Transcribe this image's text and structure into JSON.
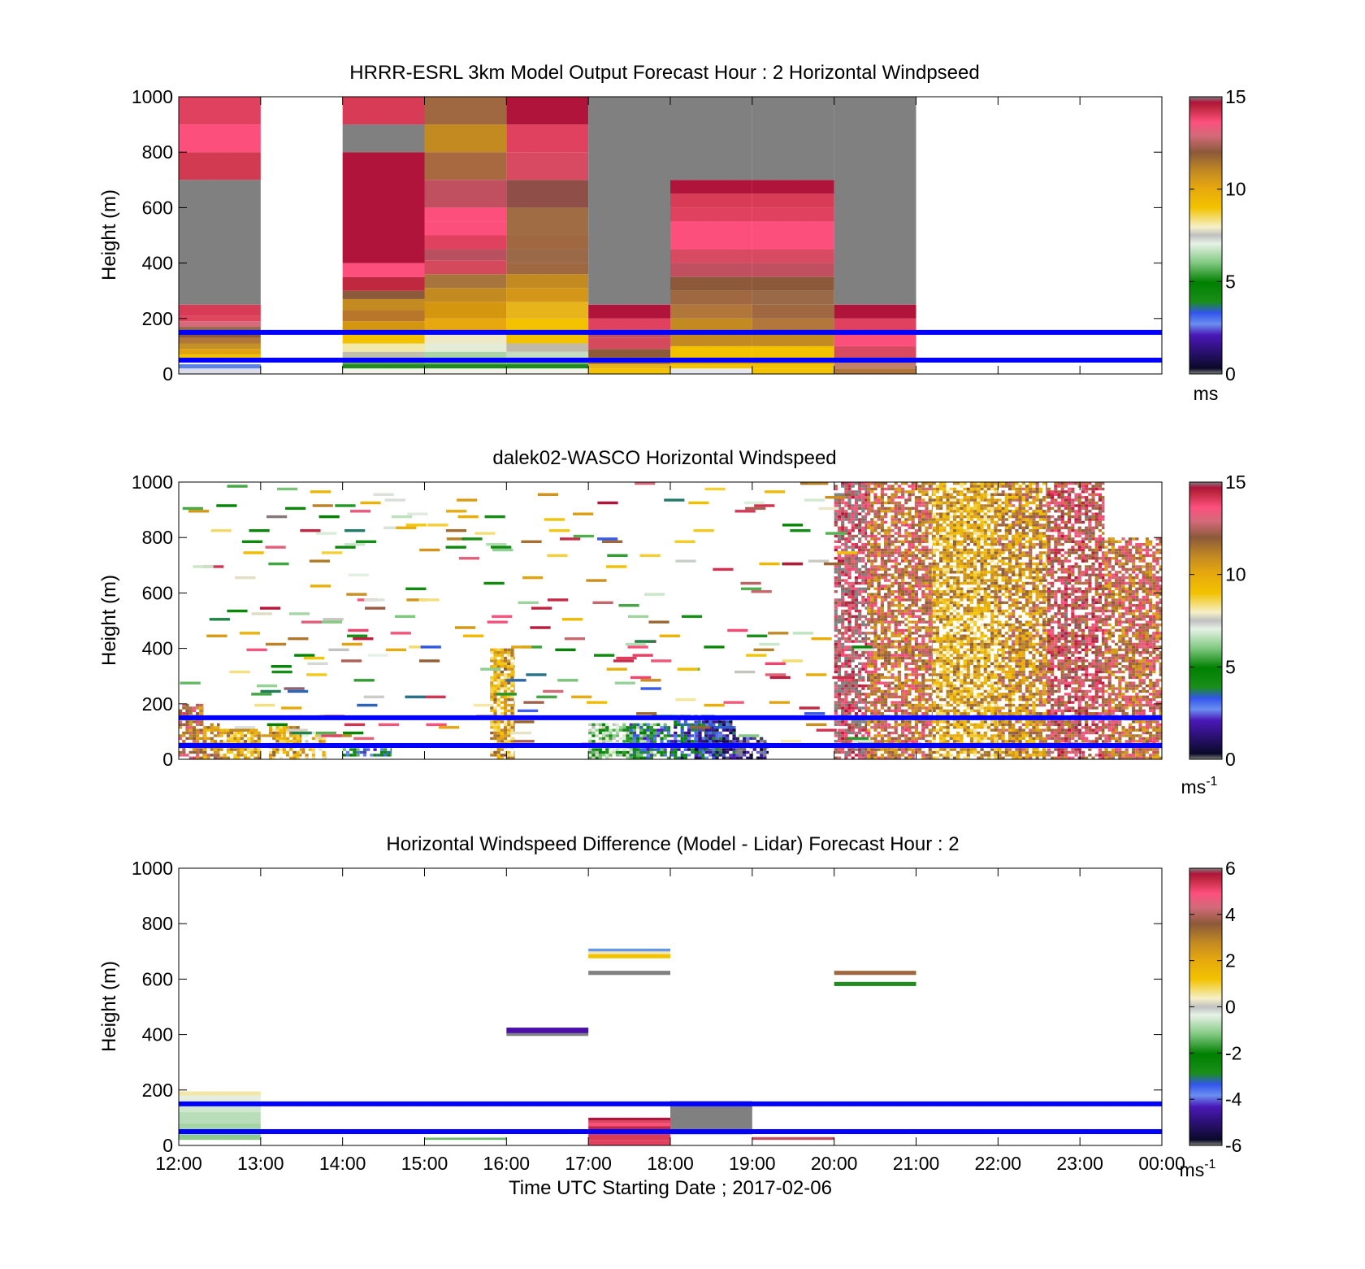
{
  "figure": {
    "x_title": "Time UTC  Starting Date ; 2017-02-06",
    "x_tick_labels": [
      "12:00",
      "13:00",
      "14:00",
      "15:00",
      "16:00",
      "17:00",
      "18:00",
      "19:00",
      "20:00",
      "21:00",
      "22:00",
      "23:00",
      "00:00"
    ]
  },
  "chart_data": [
    {
      "type": "heatmap",
      "title": "HRRR-ESRL 3km Model Output   Forecast Hour : 2 Horizontal Windpseed",
      "ylabel": "Height (m)",
      "xlabel": "",
      "xlim_hours": [
        12,
        24
      ],
      "ylim": [
        0,
        1000
      ],
      "y_ticks": [
        0,
        200,
        400,
        600,
        800,
        1000
      ],
      "colorbar": {
        "min": 0,
        "max": 15,
        "ticks": [
          0,
          5,
          10,
          15
        ],
        "unit_label": "ms",
        "unit_superscript": ""
      },
      "reference_lines_m": [
        50,
        150
      ],
      "reference_line_color": "#0000ff",
      "cells": [
        {
          "t0": 12,
          "t1": 13,
          "segments": [
            [
              0,
              20,
              "#dadce8"
            ],
            [
              20,
              35,
              "#5a7fe6"
            ],
            [
              35,
              50,
              "#f4f4ea"
            ],
            [
              50,
              70,
              "#f2c200"
            ],
            [
              70,
              90,
              "#e0a20e"
            ],
            [
              90,
              110,
              "#c49028"
            ],
            [
              110,
              130,
              "#b0763a"
            ],
            [
              130,
              150,
              "#8c5a3a"
            ],
            [
              150,
              170,
              "#9a6a48"
            ],
            [
              170,
              190,
              "#d46a7a"
            ],
            [
              190,
              210,
              "#e0455e"
            ],
            [
              210,
              250,
              "#d83b55"
            ],
            [
              250,
              700,
              "#808080"
            ],
            [
              700,
              800,
              "#d23a52"
            ],
            [
              800,
              900,
              "#fd4f7c"
            ],
            [
              900,
              1000,
              "#e0415e"
            ]
          ]
        },
        {
          "t0": 14,
          "t1": 15,
          "segments": [
            [
              0,
              20,
              "#f2f2e8"
            ],
            [
              20,
              35,
              "#228b22"
            ],
            [
              35,
              50,
              "#5ea85e"
            ],
            [
              50,
              80,
              "#bfbfb0"
            ],
            [
              80,
              110,
              "#f2e8a8"
            ],
            [
              110,
              150,
              "#f2c200"
            ],
            [
              150,
              190,
              "#d4960f"
            ],
            [
              190,
              230,
              "#b8762a"
            ],
            [
              230,
              270,
              "#c48a22"
            ],
            [
              270,
              300,
              "#8c5a3a"
            ],
            [
              300,
              350,
              "#c02840"
            ],
            [
              350,
              400,
              "#fd4f7c"
            ],
            [
              400,
              800,
              "#b0143a"
            ],
            [
              800,
              900,
              "#808080"
            ],
            [
              900,
              1000,
              "#d83b55"
            ]
          ]
        },
        {
          "t0": 15,
          "t1": 16,
          "segments": [
            [
              0,
              20,
              "#f2f2e8"
            ],
            [
              20,
              35,
              "#1f8a1f"
            ],
            [
              35,
              55,
              "#6db86d"
            ],
            [
              55,
              80,
              "#a8d4a8"
            ],
            [
              80,
              110,
              "#e4ebd6"
            ],
            [
              110,
              150,
              "#efe8c6"
            ],
            [
              150,
              200,
              "#e6a80e"
            ],
            [
              200,
              260,
              "#d4960f"
            ],
            [
              260,
              310,
              "#c48a22"
            ],
            [
              310,
              360,
              "#a8743e"
            ],
            [
              360,
              410,
              "#d4495c"
            ],
            [
              410,
              450,
              "#b85060"
            ],
            [
              450,
              500,
              "#e0415e"
            ],
            [
              500,
              550,
              "#fd4f7c"
            ],
            [
              550,
              600,
              "#fd4f7c"
            ],
            [
              600,
              700,
              "#c05060"
            ],
            [
              700,
              800,
              "#a86840"
            ],
            [
              800,
              900,
              "#c48a22"
            ],
            [
              900,
              1000,
              "#a06840"
            ]
          ]
        },
        {
          "t0": 16,
          "t1": 17,
          "segments": [
            [
              0,
              20,
              "#f2f2e8"
            ],
            [
              20,
              35,
              "#1f8a1f"
            ],
            [
              35,
              55,
              "#6db86d"
            ],
            [
              55,
              80,
              "#c4dcc4"
            ],
            [
              80,
              110,
              "#c0b8a8"
            ],
            [
              110,
              150,
              "#f2c200"
            ],
            [
              150,
              200,
              "#f2c200"
            ],
            [
              200,
              260,
              "#e8b41c"
            ],
            [
              260,
              310,
              "#d49618"
            ],
            [
              310,
              360,
              "#c48a22"
            ],
            [
              360,
              400,
              "#a06840"
            ],
            [
              400,
              450,
              "#9a6a48"
            ],
            [
              450,
              500,
              "#a06840"
            ],
            [
              500,
              600,
              "#a06c44"
            ],
            [
              600,
              700,
              "#904e48"
            ],
            [
              700,
              800,
              "#d84a62"
            ],
            [
              800,
              900,
              "#e0415e"
            ],
            [
              900,
              1000,
              "#b0143a"
            ]
          ]
        },
        {
          "t0": 17,
          "t1": 18,
          "segments": [
            [
              0,
              20,
              "#f2c200"
            ],
            [
              20,
              35,
              "#e8b41c"
            ],
            [
              35,
              60,
              "#b0763a"
            ],
            [
              60,
              90,
              "#8c5a3a"
            ],
            [
              90,
              130,
              "#d4495c"
            ],
            [
              130,
              160,
              "#c05060"
            ],
            [
              160,
              200,
              "#e0415e"
            ],
            [
              200,
              250,
              "#b0143a"
            ],
            [
              250,
              1000,
              "#808080"
            ]
          ]
        },
        {
          "t0": 18,
          "t1": 19,
          "segments": [
            [
              0,
              20,
              "#e8e8f0"
            ],
            [
              20,
              35,
              "#f2c200"
            ],
            [
              35,
              60,
              "#e0a20e"
            ],
            [
              60,
              100,
              "#f2c200"
            ],
            [
              100,
              150,
              "#c48a22"
            ],
            [
              150,
              200,
              "#c48a22"
            ],
            [
              200,
              250,
              "#b0763a"
            ],
            [
              250,
              300,
              "#a06840"
            ],
            [
              300,
              350,
              "#8c5a3a"
            ],
            [
              350,
              400,
              "#c05060"
            ],
            [
              400,
              450,
              "#d84a62"
            ],
            [
              450,
              500,
              "#fd4f7c"
            ],
            [
              500,
              550,
              "#fd4f7c"
            ],
            [
              550,
              600,
              "#e0415e"
            ],
            [
              600,
              650,
              "#d83b55"
            ],
            [
              650,
              700,
              "#b0143a"
            ],
            [
              700,
              1000,
              "#808080"
            ]
          ]
        },
        {
          "t0": 19,
          "t1": 20,
          "segments": [
            [
              0,
              20,
              "#f2c200"
            ],
            [
              20,
              35,
              "#f2c200"
            ],
            [
              35,
              60,
              "#e0a20e"
            ],
            [
              60,
              100,
              "#f2c200"
            ],
            [
              100,
              150,
              "#c48a22"
            ],
            [
              150,
              200,
              "#b0763a"
            ],
            [
              200,
              250,
              "#a06840"
            ],
            [
              250,
              300,
              "#9a6a48"
            ],
            [
              300,
              350,
              "#8c5a3a"
            ],
            [
              350,
              400,
              "#c05060"
            ],
            [
              400,
              450,
              "#d84a62"
            ],
            [
              450,
              500,
              "#fd4f7c"
            ],
            [
              500,
              550,
              "#fd4f7c"
            ],
            [
              550,
              600,
              "#e0415e"
            ],
            [
              600,
              650,
              "#d83b55"
            ],
            [
              650,
              700,
              "#b0143a"
            ],
            [
              700,
              1000,
              "#808080"
            ]
          ]
        },
        {
          "t0": 20,
          "t1": 21,
          "segments": [
            [
              0,
              20,
              "#b0763a"
            ],
            [
              20,
              40,
              "#c0806a"
            ],
            [
              40,
              60,
              "#9a4e70"
            ],
            [
              60,
              100,
              "#d84a62"
            ],
            [
              100,
              150,
              "#fd4f7c"
            ],
            [
              150,
              200,
              "#e0415e"
            ],
            [
              200,
              250,
              "#b0143a"
            ],
            [
              250,
              1000,
              "#808080"
            ]
          ]
        }
      ]
    },
    {
      "type": "heatmap",
      "title": "dalek02-WASCO  Horizontal Windspeed",
      "ylabel": "Height (m)",
      "xlabel": "",
      "xlim_hours": [
        12,
        24
      ],
      "ylim": [
        0,
        1000
      ],
      "y_ticks": [
        0,
        200,
        400,
        600,
        800,
        1000
      ],
      "colorbar": {
        "min": 0,
        "max": 15,
        "ticks": [
          0,
          5,
          10,
          15
        ],
        "unit_label": "ms",
        "unit_superscript": "-1"
      },
      "reference_lines_m": [
        50,
        150
      ],
      "reference_line_color": "#0000ff",
      "layers": [
        {
          "t0": 12.0,
          "t1": 12.3,
          "h0": 0,
          "h1": 200,
          "value": 12
        },
        {
          "t0": 12.3,
          "t1": 12.5,
          "h0": 0,
          "h1": 130,
          "value": 11
        },
        {
          "t0": 12.5,
          "t1": 13.0,
          "h0": 0,
          "h1": 110,
          "value": 10
        },
        {
          "t0": 13.1,
          "t1": 13.5,
          "h0": 0,
          "h1": 120,
          "value": 10
        },
        {
          "t0": 13.5,
          "t1": 13.8,
          "h0": 0,
          "h1": 100,
          "value": 9
        },
        {
          "t0": 14.0,
          "t1": 14.6,
          "h0": 10,
          "h1": 40,
          "value": 4
        },
        {
          "t0": 15.8,
          "t1": 16.1,
          "h0": 0,
          "h1": 400,
          "value": 10
        },
        {
          "t0": 17.0,
          "t1": 17.8,
          "h0": 0,
          "h1": 130,
          "value": 6
        },
        {
          "t0": 17.5,
          "t1": 18.0,
          "h0": 0,
          "h1": 130,
          "value": 4
        },
        {
          "t0": 18.0,
          "t1": 18.6,
          "h0": 0,
          "h1": 160,
          "value": 3
        },
        {
          "t0": 18.3,
          "t1": 18.8,
          "h0": 0,
          "h1": 140,
          "value": 2
        },
        {
          "t0": 18.8,
          "t1": 19.2,
          "h0": 0,
          "h1": 80,
          "value": 1
        },
        {
          "t0": 20.0,
          "t1": 20.4,
          "h0": 0,
          "h1": 1000,
          "value": 14
        },
        {
          "t0": 20.4,
          "t1": 21.2,
          "h0": 0,
          "h1": 1000,
          "value": 12
        },
        {
          "t0": 21.2,
          "t1": 22.0,
          "h0": 0,
          "h1": 1000,
          "value": 10
        },
        {
          "t0": 22.0,
          "t1": 22.6,
          "h0": 0,
          "h1": 1000,
          "value": 11
        },
        {
          "t0": 22.6,
          "t1": 23.3,
          "h0": 0,
          "h1": 1000,
          "value": 13
        },
        {
          "t0": 23.3,
          "t1": 24.0,
          "h0": 0,
          "h1": 800,
          "value": 12
        }
      ]
    },
    {
      "type": "heatmap",
      "title": "Horizontal Windspeed Difference (Model - Lidar) Forecast Hour : 2",
      "ylabel": "Height (m)",
      "xlabel": "Time UTC  Starting Date ; 2017-02-06",
      "xlim_hours": [
        12,
        24
      ],
      "ylim": [
        0,
        1000
      ],
      "y_ticks": [
        0,
        200,
        400,
        600,
        800,
        1000
      ],
      "colorbar": {
        "min": -6,
        "max": 6,
        "ticks": [
          -6,
          -4,
          -2,
          0,
          2,
          4,
          6
        ],
        "unit_label": "ms",
        "unit_superscript": "-1"
      },
      "reference_lines_m": [
        50,
        150
      ],
      "reference_line_color": "#0000ff",
      "cells": [
        {
          "t0": 12,
          "t1": 13,
          "segments": [
            [
              20,
              40,
              "#8ec98e"
            ],
            [
              40,
              80,
              "#a5d4a5"
            ],
            [
              80,
              120,
              "#b8ddb8"
            ],
            [
              120,
              150,
              "#cfe6cf"
            ],
            [
              150,
              180,
              "#e4efe0"
            ],
            [
              180,
              195,
              "#f2e6a8"
            ]
          ]
        },
        {
          "t0": 15,
          "t1": 16,
          "segments": [
            [
              20,
              28,
              "#6db86d"
            ]
          ]
        },
        {
          "t0": 16,
          "t1": 17,
          "segments": [
            [
              395,
              405,
              "#808080"
            ],
            [
              405,
              425,
              "#4a10a8"
            ]
          ]
        },
        {
          "t0": 17,
          "t1": 18,
          "segments": [
            [
              0,
              20,
              "#e0415e"
            ],
            [
              20,
              40,
              "#d83b55"
            ],
            [
              40,
              55,
              "#b0143a"
            ],
            [
              55,
              70,
              "#c02840"
            ],
            [
              70,
              80,
              "#fd4f7c"
            ],
            [
              80,
              90,
              "#e0415e"
            ],
            [
              90,
              100,
              "#b0143a"
            ],
            [
              615,
              630,
              "#808080"
            ],
            [
              675,
              690,
              "#f2c200"
            ],
            [
              690,
              700,
              "#f2e6a8"
            ],
            [
              700,
              710,
              "#6495ed"
            ]
          ]
        },
        {
          "t0": 18,
          "t1": 19,
          "segments": [
            [
              40,
              160,
              "#808080"
            ]
          ]
        },
        {
          "t0": 19,
          "t1": 20,
          "segments": [
            [
              20,
              30,
              "#c05060"
            ]
          ]
        },
        {
          "t0": 20,
          "t1": 21,
          "segments": [
            [
              575,
              590,
              "#228b22"
            ],
            [
              615,
              630,
              "#a06840"
            ]
          ]
        }
      ]
    }
  ]
}
